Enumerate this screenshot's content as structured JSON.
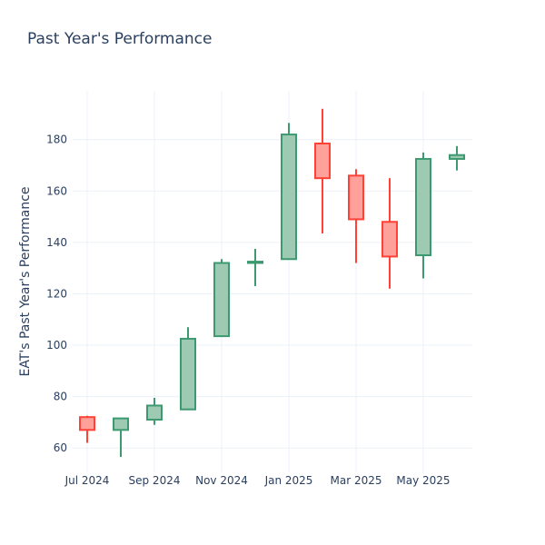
{
  "chart_data": {
    "type": "candlestick",
    "title": "Past Year's Performance",
    "xlabel": "",
    "ylabel": "EAT's Past Year's Performance",
    "ylim": [
      50.5,
      199
    ],
    "x_tick_labels": [
      "Jul 2024",
      "Sep 2024",
      "Nov 2024",
      "Jan 2025",
      "Mar 2025",
      "May 2025"
    ],
    "y_ticks": [
      60,
      80,
      100,
      120,
      140,
      160,
      180
    ],
    "grid": true,
    "legend": "none",
    "colors": {
      "increasing_line": "#3d9970",
      "increasing_fill": "#9ecab4",
      "decreasing_line": "#ff4136",
      "decreasing_fill": "#ffa09b",
      "grid": "#ebf0f8",
      "text": "#2a3f5f"
    },
    "candles": [
      {
        "month": "Jul 2024",
        "open": 72.0,
        "high": 72.5,
        "low": 62.0,
        "close": 67.0
      },
      {
        "month": "Aug 2024",
        "open": 67.0,
        "high": 71.5,
        "low": 56.5,
        "close": 71.5
      },
      {
        "month": "Sep 2024",
        "open": 71.0,
        "high": 79.5,
        "low": 69.0,
        "close": 76.5
      },
      {
        "month": "Oct 2024",
        "open": 75.0,
        "high": 107.0,
        "low": 75.0,
        "close": 102.5
      },
      {
        "month": "Nov 2024",
        "open": 103.5,
        "high": 133.5,
        "low": 103.5,
        "close": 132.0
      },
      {
        "month": "Dec 2024",
        "open": 132.0,
        "high": 137.5,
        "low": 123.0,
        "close": 132.5
      },
      {
        "month": "Jan 2025",
        "open": 133.5,
        "high": 186.5,
        "low": 133.5,
        "close": 182.0
      },
      {
        "month": "Feb 2025",
        "open": 178.5,
        "high": 192.0,
        "low": 143.5,
        "close": 165.0
      },
      {
        "month": "Mar 2025",
        "open": 166.0,
        "high": 168.5,
        "low": 132.0,
        "close": 149.0
      },
      {
        "month": "Apr 2025",
        "open": 148.0,
        "high": 165.0,
        "low": 122.0,
        "close": 134.5
      },
      {
        "month": "May 2025",
        "open": 135.0,
        "high": 175.0,
        "low": 126.0,
        "close": 172.5
      },
      {
        "month": "Jun 2025",
        "open": 172.5,
        "high": 177.5,
        "low": 168.0,
        "close": 174.0
      }
    ]
  }
}
